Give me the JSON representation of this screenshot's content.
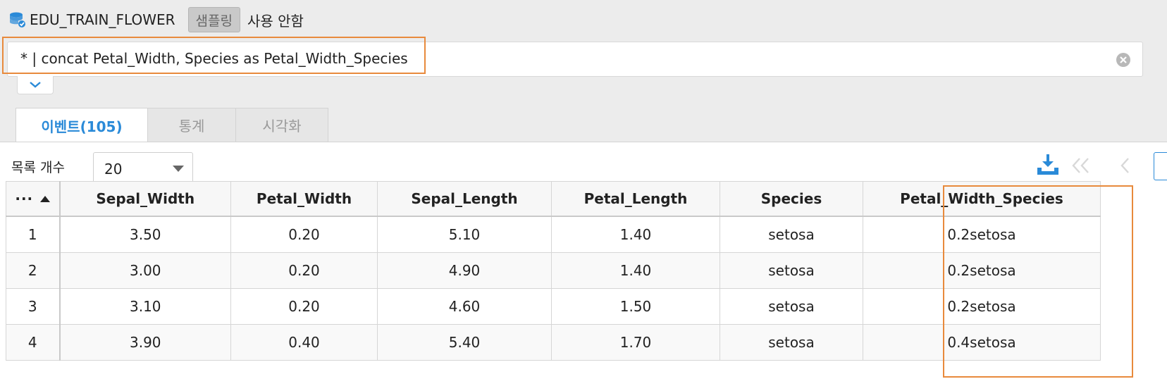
{
  "header": {
    "dataset_name": "EDU_TRAIN_FLOWER",
    "sampling_label": "샘플링",
    "no_use_label": "사용 안함"
  },
  "query": {
    "text": "* | concat Petal_Width, Species as Petal_Width_Species"
  },
  "tabs": [
    {
      "label": "이벤트(105)",
      "active": true
    },
    {
      "label": "통계",
      "active": false
    },
    {
      "label": "시각화",
      "active": false
    }
  ],
  "toolbar": {
    "list_count_label": "목록 개수",
    "page_size": "20"
  },
  "table": {
    "index_header": "···",
    "columns": [
      "Sepal_Width",
      "Petal_Width",
      "Sepal_Length",
      "Petal_Length",
      "Species",
      "Petal_Width_Species"
    ],
    "rows": [
      {
        "idx": "1",
        "cells": [
          "3.50",
          "0.20",
          "5.10",
          "1.40",
          "setosa",
          "0.2setosa"
        ]
      },
      {
        "idx": "2",
        "cells": [
          "3.00",
          "0.20",
          "4.90",
          "1.40",
          "setosa",
          "0.2setosa"
        ]
      },
      {
        "idx": "3",
        "cells": [
          "3.10",
          "0.20",
          "4.60",
          "1.50",
          "setosa",
          "0.2setosa"
        ]
      },
      {
        "idx": "4",
        "cells": [
          "3.90",
          "0.40",
          "5.40",
          "1.70",
          "setosa",
          "0.4setosa"
        ]
      }
    ]
  },
  "colors": {
    "accent": "#2a8ad8",
    "highlight": "#e88a3c"
  },
  "icons": [
    "database-icon",
    "clear-icon",
    "chevron-down-icon",
    "download-icon",
    "first-page-icon",
    "prev-page-icon",
    "sort-asc-icon",
    "ellipsis-icon"
  ]
}
